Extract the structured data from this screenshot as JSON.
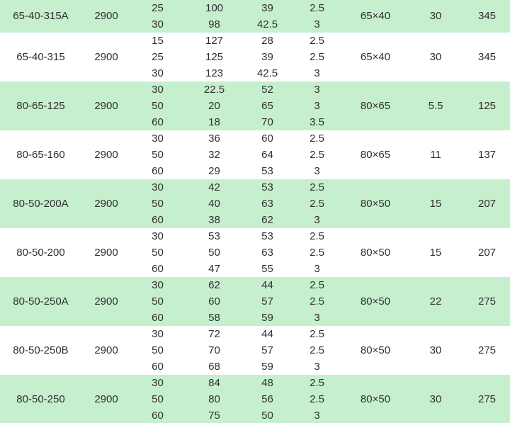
{
  "chart_data": {
    "type": "table",
    "column_semantics": [
      "model",
      "speed",
      "flow",
      "head",
      "efficiency",
      "npsh",
      "port_size",
      "motor_power",
      "weight"
    ],
    "groups": [
      {
        "model": "65-40-315A",
        "speed": "2900",
        "port_size": "65×40",
        "motor_power": "30",
        "weight": "345",
        "shade": "green",
        "label_position": "first-row",
        "rows": [
          [
            "25",
            "100",
            "39",
            "2.5"
          ],
          [
            "30",
            "98",
            "42.5",
            "3"
          ]
        ]
      },
      {
        "model": "65-40-315",
        "speed": "2900",
        "port_size": "65×40",
        "motor_power": "30",
        "weight": "345",
        "shade": "white",
        "label_position": "middle",
        "rows": [
          [
            "15",
            "127",
            "28",
            "2.5"
          ],
          [
            "25",
            "125",
            "39",
            "2.5"
          ],
          [
            "30",
            "123",
            "42.5",
            "3"
          ]
        ]
      },
      {
        "model": "80-65-125",
        "speed": "2900",
        "port_size": "80×65",
        "motor_power": "5.5",
        "weight": "125",
        "shade": "green",
        "label_position": "middle",
        "rows": [
          [
            "30",
            "22.5",
            "52",
            "3"
          ],
          [
            "50",
            "20",
            "65",
            "3"
          ],
          [
            "60",
            "18",
            "70",
            "3.5"
          ]
        ]
      },
      {
        "model": "80-65-160",
        "speed": "2900",
        "port_size": "80×65",
        "motor_power": "11",
        "weight": "137",
        "shade": "white",
        "label_position": "middle",
        "rows": [
          [
            "30",
            "36",
            "60",
            "2.5"
          ],
          [
            "50",
            "32",
            "64",
            "2.5"
          ],
          [
            "60",
            "29",
            "53",
            "3"
          ]
        ]
      },
      {
        "model": "80-50-200A",
        "speed": "2900",
        "port_size": "80×50",
        "motor_power": "15",
        "weight": "207",
        "shade": "green",
        "label_position": "middle",
        "rows": [
          [
            "30",
            "42",
            "53",
            "2.5"
          ],
          [
            "50",
            "40",
            "63",
            "2.5"
          ],
          [
            "60",
            "38",
            "62",
            "3"
          ]
        ]
      },
      {
        "model": "80-50-200",
        "speed": "2900",
        "port_size": "80×50",
        "motor_power": "15",
        "weight": "207",
        "shade": "white",
        "label_position": "middle",
        "rows": [
          [
            "30",
            "53",
            "53",
            "2.5"
          ],
          [
            "50",
            "50",
            "63",
            "2.5"
          ],
          [
            "60",
            "47",
            "55",
            "3"
          ]
        ]
      },
      {
        "model": "80-50-250A",
        "speed": "2900",
        "port_size": "80×50",
        "motor_power": "22",
        "weight": "275",
        "shade": "green",
        "label_position": "middle",
        "rows": [
          [
            "30",
            "62",
            "44",
            "2.5"
          ],
          [
            "50",
            "60",
            "57",
            "2.5"
          ],
          [
            "60",
            "58",
            "59",
            "3"
          ]
        ]
      },
      {
        "model": "80-50-250B",
        "speed": "2900",
        "port_size": "80×50",
        "motor_power": "30",
        "weight": "275",
        "shade": "white",
        "label_position": "middle",
        "rows": [
          [
            "30",
            "72",
            "44",
            "2.5"
          ],
          [
            "50",
            "70",
            "57",
            "2.5"
          ],
          [
            "60",
            "68",
            "59",
            "3"
          ]
        ]
      },
      {
        "model": "80-50-250",
        "speed": "2900",
        "port_size": "80×50",
        "motor_power": "30",
        "weight": "275",
        "shade": "green",
        "label_position": "middle",
        "rows": [
          [
            "30",
            "84",
            "48",
            "2.5"
          ],
          [
            "50",
            "80",
            "56",
            "2.5"
          ],
          [
            "60",
            "75",
            "50",
            "3"
          ]
        ]
      }
    ]
  },
  "colors": {
    "row_green": "#c6efce",
    "row_white": "#ffffff",
    "text": "#2f2f2f",
    "bottom_line": "#b2ccb5"
  }
}
